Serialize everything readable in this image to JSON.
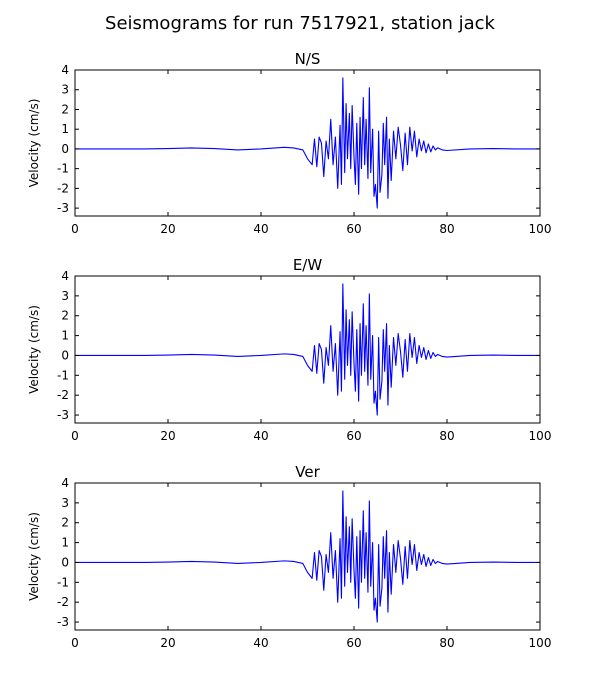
{
  "figure": {
    "title": "Seismograms for run 7517921, station jack"
  },
  "chart_data": [
    {
      "type": "line",
      "title": "N/S",
      "xlabel": "",
      "ylabel": "Velocity (cm/s)",
      "xlim": [
        0,
        100
      ],
      "ylim": [
        -3.4,
        4
      ],
      "xticks": [
        0,
        20,
        40,
        60,
        80,
        100
      ],
      "yticks": [
        -3,
        -2,
        -1,
        0,
        1,
        2,
        3,
        4
      ],
      "grid": false,
      "color": "#0000ff",
      "series": [
        {
          "x": [
            0,
            5,
            10,
            15,
            20,
            25,
            30,
            35,
            40,
            45,
            47,
            49,
            50,
            51,
            51.5,
            52,
            52.5,
            53,
            53.5,
            54,
            54.5,
            55,
            55.5,
            56,
            56.5,
            57,
            57.3,
            57.6,
            58,
            58.3,
            58.6,
            59,
            59.3,
            59.6,
            60,
            60.3,
            60.6,
            61,
            61.3,
            61.6,
            62,
            62.3,
            62.6,
            63,
            63.3,
            63.6,
            64,
            64.3,
            64.6,
            65,
            65.3,
            65.6,
            66,
            66.3,
            66.6,
            67,
            67.3,
            67.6,
            68,
            68.5,
            69,
            69.5,
            70,
            70.5,
            71,
            71.5,
            72,
            72.5,
            73,
            73.5,
            74,
            74.5,
            75,
            75.5,
            76,
            76.5,
            77,
            77.5,
            78,
            79,
            80,
            85,
            90,
            95,
            100
          ],
          "y": [
            0,
            0,
            0,
            0,
            0.02,
            0.05,
            0.02,
            -0.05,
            0,
            0.08,
            0.05,
            -0.05,
            -0.5,
            -0.8,
            0.5,
            -0.9,
            0.6,
            0.3,
            -1.4,
            0.4,
            -0.5,
            1.5,
            -0.8,
            0.6,
            -2,
            1.2,
            -1.8,
            3.6,
            -1.2,
            2.3,
            -0.5,
            1.8,
            -1,
            2.2,
            -0.4,
            -1.8,
            1.3,
            -2.3,
            1.6,
            -1,
            2.6,
            -0.8,
            1.5,
            -1.5,
            3.1,
            -1.2,
            1,
            -2.4,
            -1.8,
            -3,
            0.9,
            -2.2,
            -1.3,
            1.3,
            -0.8,
            1.6,
            -2.5,
            0.5,
            -1.6,
            0.9,
            -0.5,
            1.1,
            0.2,
            -1.1,
            0.8,
            -0.8,
            1.1,
            -0.1,
            0.9,
            -0.4,
            0.5,
            -0.1,
            0.4,
            -0.2,
            0.25,
            -0.15,
            0.15,
            -0.05,
            0.05,
            -0.05,
            -0.08,
            0,
            0.02,
            0,
            0
          ]
        }
      ]
    },
    {
      "type": "line",
      "title": "E/W",
      "xlabel": "",
      "ylabel": "Velocity (cm/s)",
      "xlim": [
        0,
        100
      ],
      "ylim": [
        -3.4,
        4
      ],
      "xticks": [
        0,
        20,
        40,
        60,
        80,
        100
      ],
      "yticks": [
        -3,
        -2,
        -1,
        0,
        1,
        2,
        3,
        4
      ],
      "grid": false,
      "color": "#0000ff",
      "series": [
        {
          "x": [
            0,
            5,
            10,
            15,
            20,
            25,
            30,
            35,
            40,
            45,
            47,
            49,
            50,
            51,
            51.5,
            52,
            52.5,
            53,
            53.5,
            54,
            54.5,
            55,
            55.5,
            56,
            56.5,
            57,
            57.3,
            57.6,
            58,
            58.3,
            58.6,
            59,
            59.3,
            59.6,
            60,
            60.3,
            60.6,
            61,
            61.3,
            61.6,
            62,
            62.3,
            62.6,
            63,
            63.3,
            63.6,
            64,
            64.3,
            64.6,
            65,
            65.3,
            65.6,
            66,
            66.3,
            66.6,
            67,
            67.3,
            67.6,
            68,
            68.5,
            69,
            69.5,
            70,
            70.5,
            71,
            71.5,
            72,
            72.5,
            73,
            73.5,
            74,
            74.5,
            75,
            75.5,
            76,
            76.5,
            77,
            77.5,
            78,
            79,
            80,
            85,
            90,
            95,
            100
          ],
          "y": [
            0,
            0,
            0,
            0,
            0.02,
            0.05,
            0.02,
            -0.05,
            0,
            0.08,
            0.05,
            -0.05,
            -0.5,
            -0.8,
            0.5,
            -0.9,
            0.6,
            0.3,
            -1.4,
            0.4,
            -0.5,
            1.5,
            -0.8,
            0.6,
            -2,
            1.2,
            -1.8,
            3.6,
            -1.2,
            2.3,
            -0.5,
            1.8,
            -1,
            2.2,
            -0.4,
            -1.8,
            1.3,
            -2.3,
            1.6,
            -1,
            2.6,
            -0.8,
            1.5,
            -1.5,
            3.1,
            -1.2,
            1,
            -2.4,
            -1.8,
            -3,
            0.9,
            -2.2,
            -1.3,
            1.3,
            -0.8,
            1.6,
            -2.5,
            0.5,
            -1.6,
            0.9,
            -0.5,
            1.1,
            0.2,
            -1.1,
            0.8,
            -0.8,
            1.1,
            -0.1,
            0.9,
            -0.4,
            0.5,
            -0.1,
            0.4,
            -0.2,
            0.25,
            -0.15,
            0.15,
            -0.05,
            0.05,
            -0.05,
            -0.08,
            0,
            0.02,
            0,
            0
          ]
        }
      ]
    },
    {
      "type": "line",
      "title": "Ver",
      "xlabel": "",
      "ylabel": "Velocity (cm/s)",
      "xlim": [
        0,
        100
      ],
      "ylim": [
        -3.4,
        4
      ],
      "xticks": [
        0,
        20,
        40,
        60,
        80,
        100
      ],
      "yticks": [
        -3,
        -2,
        -1,
        0,
        1,
        2,
        3,
        4
      ],
      "grid": false,
      "color": "#0000ff",
      "series": [
        {
          "x": [
            0,
            5,
            10,
            15,
            20,
            25,
            30,
            35,
            40,
            45,
            47,
            49,
            50,
            51,
            51.5,
            52,
            52.5,
            53,
            53.5,
            54,
            54.5,
            55,
            55.5,
            56,
            56.5,
            57,
            57.3,
            57.6,
            58,
            58.3,
            58.6,
            59,
            59.3,
            59.6,
            60,
            60.3,
            60.6,
            61,
            61.3,
            61.6,
            62,
            62.3,
            62.6,
            63,
            63.3,
            63.6,
            64,
            64.3,
            64.6,
            65,
            65.3,
            65.6,
            66,
            66.3,
            66.6,
            67,
            67.3,
            67.6,
            68,
            68.5,
            69,
            69.5,
            70,
            70.5,
            71,
            71.5,
            72,
            72.5,
            73,
            73.5,
            74,
            74.5,
            75,
            75.5,
            76,
            76.5,
            77,
            77.5,
            78,
            79,
            80,
            85,
            90,
            95,
            100
          ],
          "y": [
            0,
            0,
            0,
            0,
            0.02,
            0.05,
            0.02,
            -0.05,
            0,
            0.08,
            0.05,
            -0.05,
            -0.5,
            -0.8,
            0.5,
            -0.9,
            0.6,
            0.3,
            -1.4,
            0.4,
            -0.5,
            1.5,
            -0.8,
            0.6,
            -2,
            1.2,
            -1.8,
            3.6,
            -1.2,
            2.3,
            -0.5,
            1.8,
            -1,
            2.2,
            -0.4,
            -1.8,
            1.3,
            -2.3,
            1.6,
            -1,
            2.6,
            -0.8,
            1.5,
            -1.5,
            3.1,
            -1.2,
            1,
            -2.4,
            -1.8,
            -3,
            0.9,
            -2.2,
            -1.3,
            1.3,
            -0.8,
            1.6,
            -2.5,
            0.5,
            -1.6,
            0.9,
            -0.5,
            1.1,
            0.2,
            -1.1,
            0.8,
            -0.8,
            1.1,
            -0.1,
            0.9,
            -0.4,
            0.5,
            -0.1,
            0.4,
            -0.2,
            0.25,
            -0.15,
            0.15,
            -0.05,
            0.05,
            -0.05,
            -0.08,
            0,
            0.02,
            0,
            0
          ]
        }
      ]
    }
  ]
}
